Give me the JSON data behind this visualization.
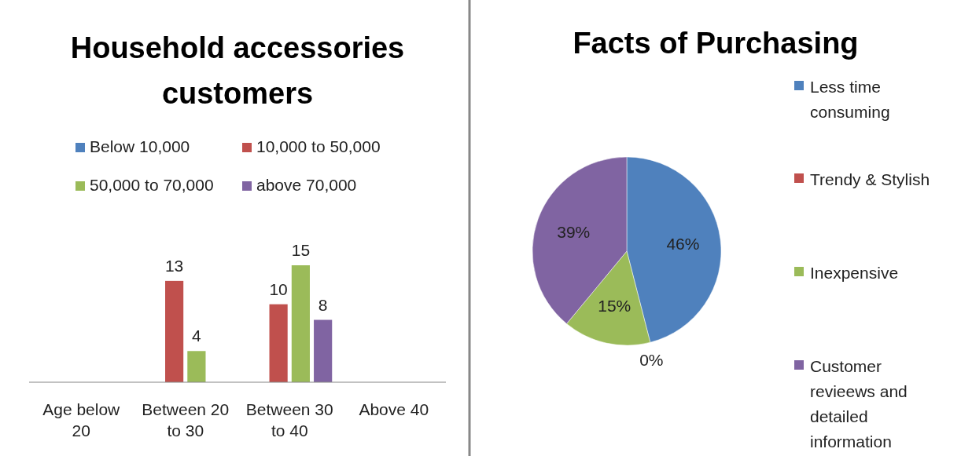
{
  "chart_data": [
    {
      "type": "bar",
      "title": "Household accessories customers",
      "categories": [
        "Age below 20",
        "Between 20 to 30",
        "Between 30 to 40",
        "Above 40"
      ],
      "series": [
        {
          "name": "Below 10,000",
          "color": "#4f81bd",
          "values": [
            null,
            null,
            null,
            null
          ]
        },
        {
          "name": "10,000 to 50,000",
          "color": "#c0504d",
          "values": [
            null,
            13,
            10,
            null
          ]
        },
        {
          "name": "50,000 to 70,000",
          "color": "#9bbb59",
          "values": [
            null,
            4,
            15,
            null
          ]
        },
        {
          "name": "above 70,000",
          "color": "#8064a2",
          "values": [
            null,
            null,
            8,
            null
          ]
        }
      ],
      "data_labels": true,
      "legend": "top"
    },
    {
      "type": "pie",
      "title": "Facts of Purchasing",
      "categories": [
        "Less time consuming",
        "Trendy & Stylish",
        "Inexpensive",
        "Customer revieews and detailed information"
      ],
      "values": [
        46,
        0,
        15,
        39
      ],
      "colors": [
        "#4f81bd",
        "#c0504d",
        "#9bbb59",
        "#8064a2"
      ],
      "value_labels": [
        "46%",
        "0%",
        "15%",
        "39%"
      ],
      "legend": "right"
    }
  ]
}
